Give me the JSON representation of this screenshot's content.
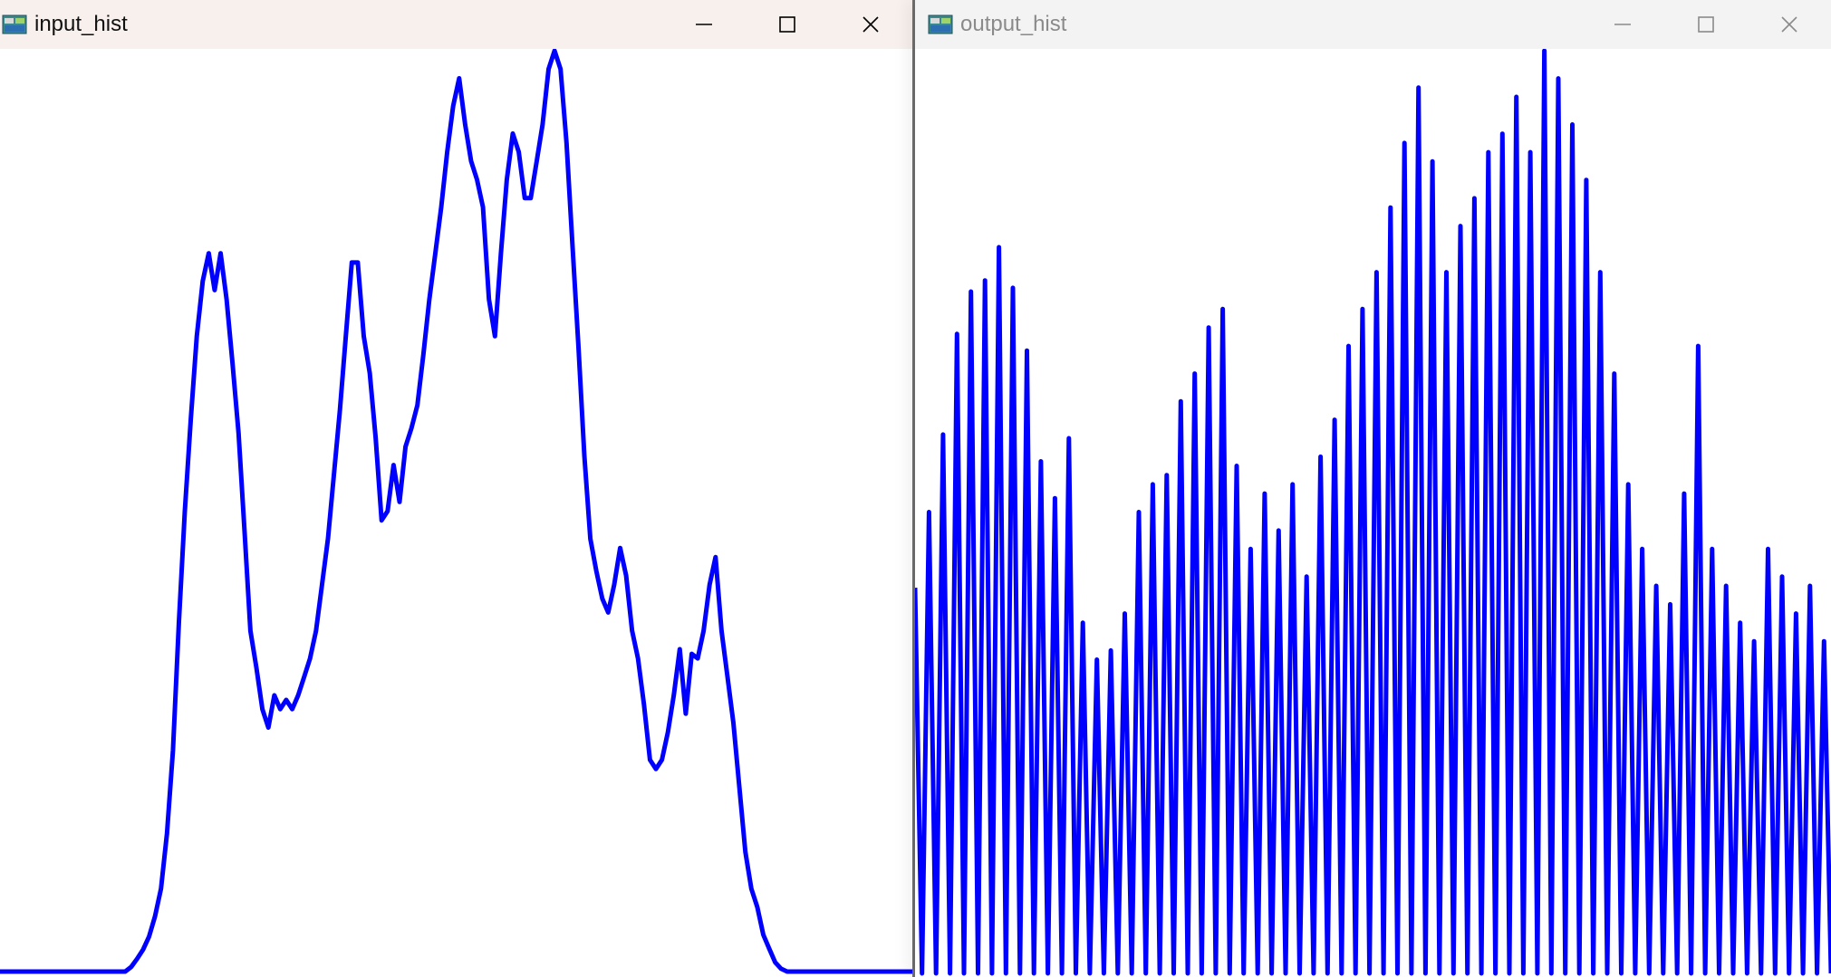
{
  "windows": [
    {
      "title": "input_hist",
      "active": true,
      "icon": "opencv-window-icon",
      "controls": [
        "minimize-icon",
        "maximize-icon",
        "close-icon"
      ]
    },
    {
      "title": "output_hist",
      "active": false,
      "icon": "opencv-window-icon",
      "controls": [
        "minimize-icon",
        "maximize-icon",
        "close-icon"
      ]
    }
  ],
  "colors": {
    "curve": "#0000ff",
    "plot_background": "#ffffff",
    "active_titlebar": "#f7f0ec",
    "inactive_titlebar": "#f3f3f3"
  },
  "chart_data": [
    {
      "type": "line",
      "window": "input_hist",
      "x_range": [
        0,
        255
      ],
      "y_range": [
        0,
        1
      ],
      "grid": false,
      "values": [
        0.0,
        0.0,
        0.0,
        0.0,
        0.0,
        0.0,
        0.0,
        0.0,
        0.0,
        0.0,
        0.0,
        0.0,
        0.0,
        0.0,
        0.0,
        0.0,
        0.0,
        0.0,
        0.0,
        0.0,
        0.0,
        0.0,
        0.005,
        0.014,
        0.024,
        0.038,
        0.06,
        0.09,
        0.15,
        0.24,
        0.38,
        0.5,
        0.6,
        0.69,
        0.75,
        0.78,
        0.74,
        0.78,
        0.73,
        0.66,
        0.585,
        0.48,
        0.37,
        0.33,
        0.285,
        0.265,
        0.3,
        0.285,
        0.295,
        0.285,
        0.3,
        0.32,
        0.34,
        0.37,
        0.42,
        0.47,
        0.54,
        0.61,
        0.69,
        0.77,
        0.77,
        0.69,
        0.65,
        0.58,
        0.49,
        0.5,
        0.55,
        0.51,
        0.57,
        0.59,
        0.615,
        0.67,
        0.73,
        0.78,
        0.83,
        0.89,
        0.94,
        0.97,
        0.92,
        0.88,
        0.86,
        0.83,
        0.73,
        0.69,
        0.78,
        0.86,
        0.91,
        0.89,
        0.84,
        0.84,
        0.88,
        0.92,
        0.98,
        1.0,
        0.98,
        0.9,
        0.79,
        0.68,
        0.56,
        0.47,
        0.435,
        0.405,
        0.39,
        0.42,
        0.46,
        0.43,
        0.37,
        0.34,
        0.29,
        0.23,
        0.22,
        0.23,
        0.26,
        0.3,
        0.35,
        0.28,
        0.345,
        0.34,
        0.37,
        0.42,
        0.45,
        0.37,
        0.32,
        0.27,
        0.2,
        0.13,
        0.09,
        0.07,
        0.04,
        0.025,
        0.01,
        0.003,
        0.0,
        0.0,
        0.0,
        0.0,
        0.0,
        0.0,
        0.0,
        0.0,
        0.0,
        0.0,
        0.0,
        0.0,
        0.0,
        0.0,
        0.0,
        0.0,
        0.0,
        0.0,
        0.0,
        0.0,
        0.0,
        0.0
      ]
    },
    {
      "type": "line",
      "window": "output_hist",
      "x_range": [
        0,
        255
      ],
      "y_range": [
        0,
        1
      ],
      "grid": false,
      "values": [
        0.418,
        0.0,
        0.5,
        0.0,
        0.584,
        0.0,
        0.693,
        0.0,
        0.739,
        0.0,
        0.751,
        0.0,
        0.787,
        0.0,
        0.743,
        0.0,
        0.675,
        0.0,
        0.555,
        0.0,
        0.515,
        0.0,
        0.58,
        0.0,
        0.38,
        0.0,
        0.34,
        0.0,
        0.35,
        0.0,
        0.39,
        0.0,
        0.5,
        0.0,
        0.53,
        0.0,
        0.54,
        0.0,
        0.62,
        0.0,
        0.65,
        0.0,
        0.7,
        0.0,
        0.72,
        0.0,
        0.55,
        0.0,
        0.46,
        0.0,
        0.52,
        0.0,
        0.48,
        0.0,
        0.53,
        0.0,
        0.43,
        0.0,
        0.56,
        0.0,
        0.6,
        0.0,
        0.68,
        0.0,
        0.72,
        0.0,
        0.76,
        0.0,
        0.83,
        0.0,
        0.9,
        0.0,
        0.96,
        0.0,
        0.88,
        0.0,
        0.76,
        0.0,
        0.81,
        0.0,
        0.84,
        0.0,
        0.89,
        0.0,
        0.91,
        0.0,
        0.95,
        0.0,
        0.89,
        0.0,
        1.0,
        0.0,
        0.97,
        0.0,
        0.92,
        0.0,
        0.86,
        0.0,
        0.76,
        0.0,
        0.65,
        0.0,
        0.53,
        0.0,
        0.46,
        0.0,
        0.42,
        0.0,
        0.4,
        0.0,
        0.52,
        0.0,
        0.68,
        0.0,
        0.46,
        0.0,
        0.42,
        0.0,
        0.38,
        0.0,
        0.36,
        0.0,
        0.46,
        0.0,
        0.43,
        0.0,
        0.39,
        0.0,
        0.42,
        0.0,
        0.36,
        0.0
      ]
    }
  ]
}
